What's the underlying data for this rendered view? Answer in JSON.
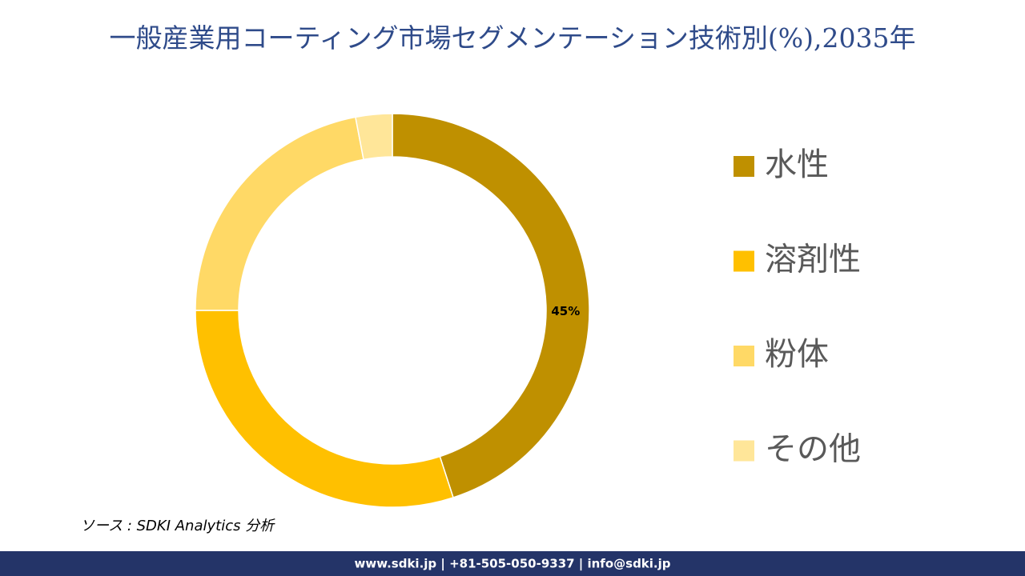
{
  "chart_data": {
    "type": "donut",
    "title": "一般産業用コーティング市場セグメンテーション技術別(%),2035年",
    "categories": [
      "水性",
      "溶剤性",
      "粉体",
      "その他"
    ],
    "values": [
      45,
      30,
      22,
      3
    ],
    "value_labels": [
      "45%",
      null,
      null,
      null
    ],
    "colors": [
      "#bf9000",
      "#ffc000",
      "#ffd966",
      "#ffe699"
    ],
    "legend": "right",
    "source": "ソース : SDKI Analytics 分析",
    "footer": "www.sdki.jp | +81-505-050-9337 | info@sdki.jp"
  }
}
